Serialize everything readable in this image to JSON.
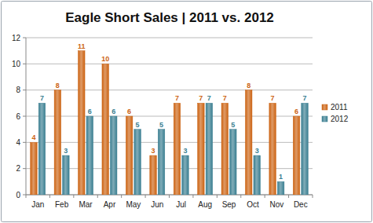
{
  "chart_data": {
    "type": "bar",
    "title": "Eagle Short Sales | 2011 vs. 2012",
    "categories": [
      "Jan",
      "Feb",
      "Mar",
      "Apr",
      "May",
      "Jun",
      "Jul",
      "Aug",
      "Sep",
      "Oct",
      "Nov",
      "Dec"
    ],
    "series": [
      {
        "name": "2011",
        "color": "#cc6414",
        "values": [
          4,
          8,
          11,
          10,
          6,
          3,
          7,
          7,
          7,
          8,
          7,
          6
        ]
      },
      {
        "name": "2012",
        "color": "#3b7f91",
        "values": [
          7,
          3,
          6,
          6,
          5,
          5,
          3,
          7,
          5,
          3,
          1,
          7
        ]
      }
    ],
    "ylim": [
      0,
      12
    ],
    "yticks": [
      0,
      2,
      4,
      6,
      8,
      10,
      12
    ],
    "grid": true,
    "legend": "right",
    "data_labels": true
  }
}
